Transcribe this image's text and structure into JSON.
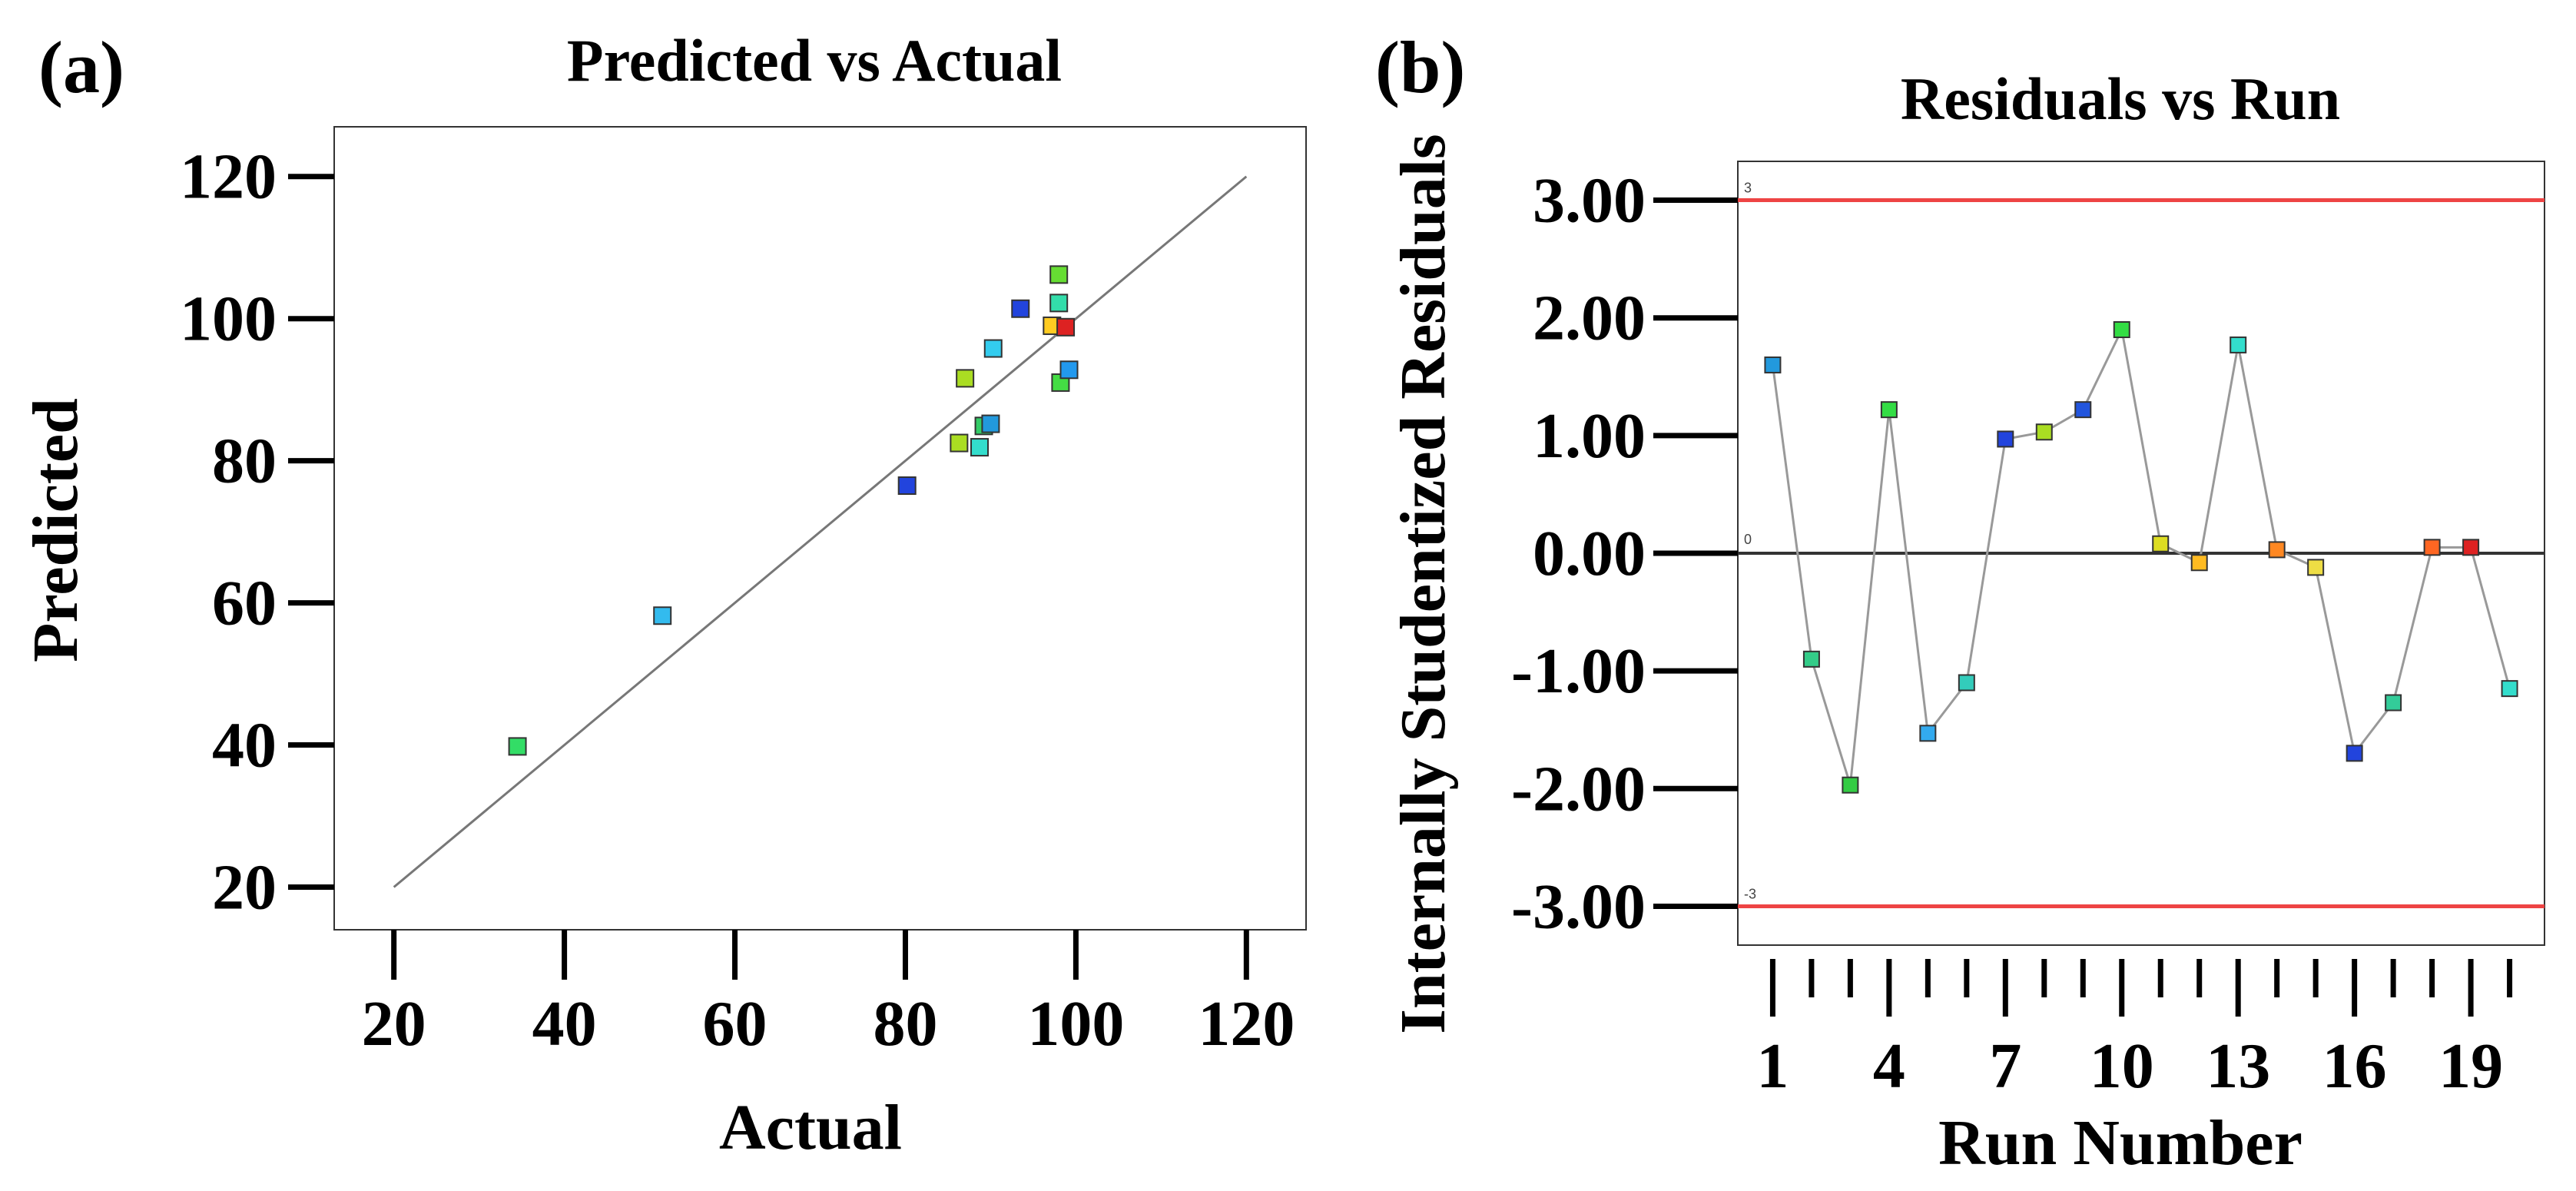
{
  "panels": {
    "a": {
      "label": "(a)"
    },
    "b": {
      "label": "(b)"
    }
  },
  "chart_data": [
    {
      "type": "scatter",
      "title": "Predicted vs Actual",
      "xlabel": "Actual",
      "ylabel": "Predicted",
      "xlim": [
        13,
        127
      ],
      "ylim": [
        14,
        127
      ],
      "xticks": [
        20,
        40,
        60,
        80,
        100,
        120
      ],
      "yticks": [
        20,
        40,
        60,
        80,
        100,
        120
      ],
      "grid": false,
      "reference_line": {
        "x": [
          20,
          120
        ],
        "y": [
          20,
          120
        ]
      },
      "points": [
        {
          "x": 34.5,
          "y": 39.8,
          "color": "#33dd66"
        },
        {
          "x": 51.5,
          "y": 58.2,
          "color": "#33bbee"
        },
        {
          "x": 80.2,
          "y": 76.5,
          "color": "#2244dd"
        },
        {
          "x": 86.3,
          "y": 82.5,
          "color": "#aadd22"
        },
        {
          "x": 88.7,
          "y": 81.9,
          "color": "#33ddcc"
        },
        {
          "x": 87.0,
          "y": 91.6,
          "color": "#aadd22"
        },
        {
          "x": 89.2,
          "y": 84.9,
          "color": "#33cc66"
        },
        {
          "x": 90.0,
          "y": 85.2,
          "color": "#2299dd"
        },
        {
          "x": 90.3,
          "y": 95.8,
          "color": "#33ccee"
        },
        {
          "x": 93.5,
          "y": 101.4,
          "color": "#2244dd"
        },
        {
          "x": 97.2,
          "y": 99.0,
          "color": "#ffcc22"
        },
        {
          "x": 98.0,
          "y": 106.2,
          "color": "#66dd33"
        },
        {
          "x": 98.0,
          "y": 102.2,
          "color": "#33ddaa"
        },
        {
          "x": 98.2,
          "y": 91.0,
          "color": "#44dd44"
        },
        {
          "x": 98.8,
          "y": 98.8,
          "color": "#dd2222"
        },
        {
          "x": 99.2,
          "y": 92.8,
          "color": "#2299ee"
        }
      ]
    },
    {
      "type": "line",
      "title": "Residuals vs Run",
      "xlabel": "Run Number",
      "ylabel": "Internally Studentized Residuals",
      "xlim": [
        0.1,
        20.9
      ],
      "ylim": [
        -3.33,
        3.33
      ],
      "xticks": [
        1,
        4,
        7,
        10,
        13,
        16,
        19
      ],
      "xminor": [
        1,
        2,
        3,
        4,
        5,
        6,
        7,
        8,
        9,
        10,
        11,
        12,
        13,
        14,
        15,
        16,
        17,
        18,
        19,
        20
      ],
      "yticks": [
        "3.00",
        "2.00",
        "1.00",
        "0.00",
        "-1.00",
        "-2.00",
        "-3.00"
      ],
      "ytick_values": [
        3,
        2,
        1,
        0,
        -1,
        -2,
        -3
      ],
      "grid": false,
      "limit_lines": [
        {
          "y": 3,
          "label": "3",
          "color": "#ee4444"
        },
        {
          "y": -3,
          "label": "-3",
          "color": "#ee4444"
        }
      ],
      "zero_line": {
        "y": 0,
        "label": "0",
        "color": "#333333"
      },
      "line_color": "#999999",
      "x": [
        1,
        2,
        3,
        4,
        5,
        6,
        7,
        8,
        9,
        10,
        11,
        12,
        13,
        14,
        15,
        16,
        17,
        18,
        19,
        20
      ],
      "values": [
        1.6,
        -0.9,
        -1.97,
        1.22,
        -1.53,
        -1.1,
        0.97,
        1.03,
        1.22,
        1.9,
        0.08,
        -0.08,
        1.77,
        0.03,
        -0.12,
        -1.7,
        -1.27,
        0.05,
        0.05,
        -1.15
      ],
      "colors": [
        "#2299dd",
        "#33cc88",
        "#33cc44",
        "#33dd44",
        "#33aaee",
        "#33ccbb",
        "#2244dd",
        "#aadd22",
        "#2255dd",
        "#33dd44",
        "#dddd22",
        "#ffbb22",
        "#33ddcc",
        "#ff8822",
        "#eedd44",
        "#2244dd",
        "#33cc99",
        "#ff6622",
        "#dd2222",
        "#33ddcc"
      ]
    }
  ]
}
